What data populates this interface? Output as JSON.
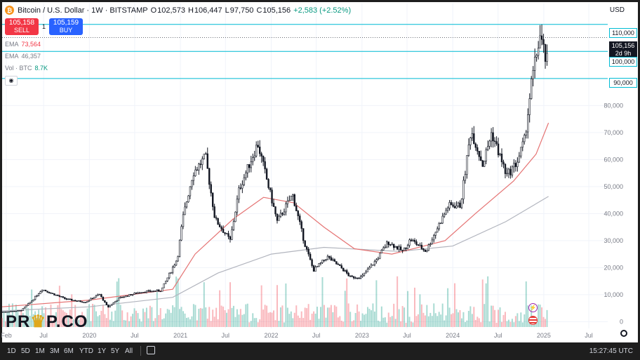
{
  "header": {
    "symbol": "Bitcoin / U.S. Dollar · 1W · BITSTAMP",
    "open_label": "O",
    "open": "102,573",
    "high_label": "H",
    "high": "106,447",
    "low_label": "L",
    "low": "97,750",
    "close_label": "C",
    "close": "105,156",
    "change": "+2,583 (+2.52%)",
    "currency": "USD"
  },
  "trade": {
    "sell_price": "105,158",
    "sell_label": "SELL",
    "buy_price": "105,159",
    "buy_label": "BUY",
    "spread": "1"
  },
  "indicators": {
    "ema1_label": "EMA",
    "ema1_value": "73,564",
    "ema2_label": "EMA",
    "ema2_value": "46,357",
    "vol_label": "Vol · BTC",
    "vol_value": "8.7K"
  },
  "price_tags": {
    "current_price": "105,156",
    "countdown": "2d 9h",
    "line_110": "110,000",
    "line_100": "100,000",
    "line_90": "90,000"
  },
  "watermark": {
    "part1": "PR",
    "part2": "P.CO"
  },
  "toolbar": {
    "ranges": [
      "1D",
      "5D",
      "1M",
      "3M",
      "6M",
      "YTD",
      "1Y",
      "5Y",
      "All"
    ],
    "clock": "15:27:45 UTC"
  },
  "colors": {
    "up": "#089981",
    "down": "#f23645",
    "candle": "#131722",
    "ema_fast": "#e57373",
    "ema_slow": "#b2b5be",
    "hline": "#00bcd4"
  },
  "chart_data": {
    "type": "candlestick",
    "title": "Bitcoin / U.S. Dollar · 1W · BITSTAMP",
    "yaxis_ticks": [
      0,
      10000,
      20000,
      30000,
      40000,
      50000,
      60000,
      70000,
      80000,
      90000,
      100000,
      110000
    ],
    "yaxis_tick_labels": [
      "0",
      "10,000",
      "20,000",
      "30,000",
      "40,000",
      "50,000",
      "60,000",
      "70,000",
      "80,000",
      "90,000",
      "100,000",
      "110,000"
    ],
    "ylim": [
      -2500,
      118000
    ],
    "xaxis_ticks": [
      "2019-02-01",
      "2019-07-01",
      "2020-01-01",
      "2020-07-01",
      "2021-01-01",
      "2021-07-01",
      "2022-01-01",
      "2022-07-01",
      "2023-01-01",
      "2023-07-01",
      "2024-01-01",
      "2024-07-01",
      "2025-01-01",
      "2025-07-01"
    ],
    "xaxis_tick_labels": [
      "Feb",
      "Jul",
      "2020",
      "Jul",
      "2021",
      "Jul",
      "2022",
      "Jul",
      "2023",
      "Jul",
      "2024",
      "Jul",
      "2025",
      "Jul"
    ],
    "xlim": [
      "2019-01-15",
      "2025-09-15"
    ],
    "horizontal_lines": [
      110000,
      100000,
      90000
    ],
    "current_price": 105156,
    "price_path": [
      [
        "2019-01-15",
        3600
      ],
      [
        "2019-04-01",
        4100
      ],
      [
        "2019-05-15",
        7800
      ],
      [
        "2019-06-25",
        12000
      ],
      [
        "2019-08-01",
        10500
      ],
      [
        "2019-10-01",
        8300
      ],
      [
        "2019-12-15",
        7200
      ],
      [
        "2020-02-10",
        10200
      ],
      [
        "2020-03-15",
        5300
      ],
      [
        "2020-05-01",
        8800
      ],
      [
        "2020-07-25",
        11000
      ],
      [
        "2020-10-15",
        11500
      ],
      [
        "2020-12-20",
        23500
      ],
      [
        "2021-01-10",
        38000
      ],
      [
        "2021-02-20",
        55000
      ],
      [
        "2021-04-12",
        61000
      ],
      [
        "2021-05-20",
        38000
      ],
      [
        "2021-07-20",
        30000
      ],
      [
        "2021-08-25",
        49000
      ],
      [
        "2021-11-08",
        66000
      ],
      [
        "2022-01-25",
        37000
      ],
      [
        "2022-03-28",
        47000
      ],
      [
        "2022-05-15",
        29000
      ],
      [
        "2022-06-20",
        19000
      ],
      [
        "2022-08-15",
        24000
      ],
      [
        "2022-10-15",
        19500
      ],
      [
        "2022-11-15",
        16500
      ],
      [
        "2022-12-30",
        16500
      ],
      [
        "2023-03-01",
        23000
      ],
      [
        "2023-04-15",
        29500
      ],
      [
        "2023-06-15",
        26000
      ],
      [
        "2023-07-15",
        30500
      ],
      [
        "2023-09-15",
        26000
      ],
      [
        "2023-10-30",
        34500
      ],
      [
        "2023-12-15",
        43000
      ],
      [
        "2024-02-01",
        43000
      ],
      [
        "2024-03-14",
        71000
      ],
      [
        "2024-05-01",
        58000
      ],
      [
        "2024-06-05",
        70000
      ],
      [
        "2024-08-05",
        54000
      ],
      [
        "2024-09-15",
        59000
      ],
      [
        "2024-10-15",
        67000
      ],
      [
        "2024-11-12",
        88000
      ],
      [
        "2024-12-16",
        106000
      ],
      [
        "2025-01-13",
        95000
      ],
      [
        "2025-01-20",
        105156
      ]
    ],
    "ema_fast_path": [
      [
        "2019-01-15",
        5500
      ],
      [
        "2020-01-01",
        8000
      ],
      [
        "2020-12-01",
        12000
      ],
      [
        "2021-03-01",
        25000
      ],
      [
        "2021-08-01",
        38000
      ],
      [
        "2021-12-01",
        46000
      ],
      [
        "2022-04-01",
        44000
      ],
      [
        "2022-08-01",
        35000
      ],
      [
        "2022-12-01",
        27000
      ],
      [
        "2023-05-01",
        25000
      ],
      [
        "2023-12-01",
        30000
      ],
      [
        "2024-04-01",
        40000
      ],
      [
        "2024-09-01",
        52000
      ],
      [
        "2024-12-01",
        62000
      ],
      [
        "2025-01-20",
        73564
      ]
    ],
    "ema_slow_path": [
      [
        "2019-01-15",
        4000
      ],
      [
        "2020-01-01",
        5500
      ],
      [
        "2020-12-01",
        9000
      ],
      [
        "2021-06-01",
        18000
      ],
      [
        "2022-01-01",
        25000
      ],
      [
        "2022-08-01",
        27500
      ],
      [
        "2023-06-01",
        26000
      ],
      [
        "2024-01-01",
        28000
      ],
      [
        "2024-08-01",
        37000
      ],
      [
        "2025-01-20",
        46357
      ]
    ]
  }
}
